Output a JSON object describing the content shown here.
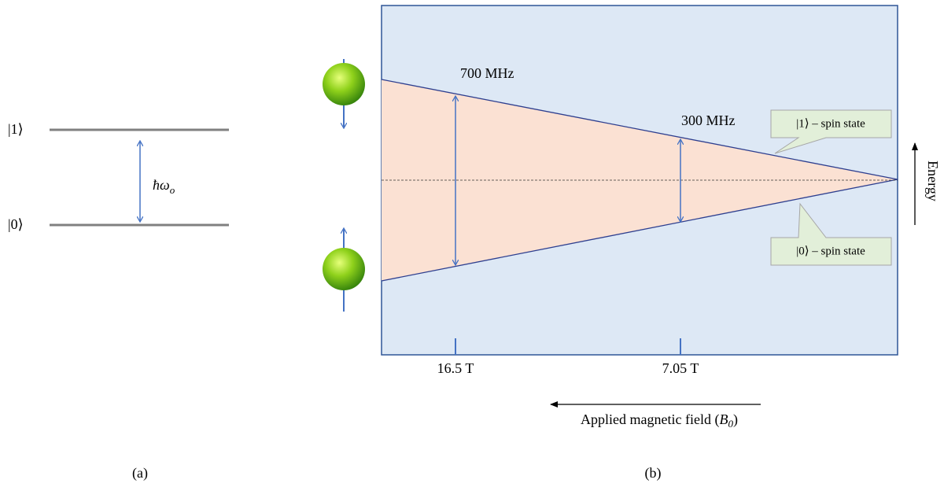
{
  "panel_a": {
    "upper_level": "|1⟩",
    "lower_level": "|0⟩",
    "gap_label": {
      "symbol": "ħω",
      "subscript": "o"
    },
    "caption": "(a)"
  },
  "panel_b": {
    "freq_high": "700 MHz",
    "freq_low": "300 MHz",
    "upper_callout": "|1⟩ – spin state",
    "lower_callout": "|0⟩ – spin state",
    "energy_label": "Energy",
    "field_ticks": [
      "16.5 T",
      "7.05 T"
    ],
    "field_label": {
      "text": "Applied magnetic field (",
      "symbol": "B",
      "subscript": "0",
      "close": ")"
    },
    "caption": "(b)"
  }
}
